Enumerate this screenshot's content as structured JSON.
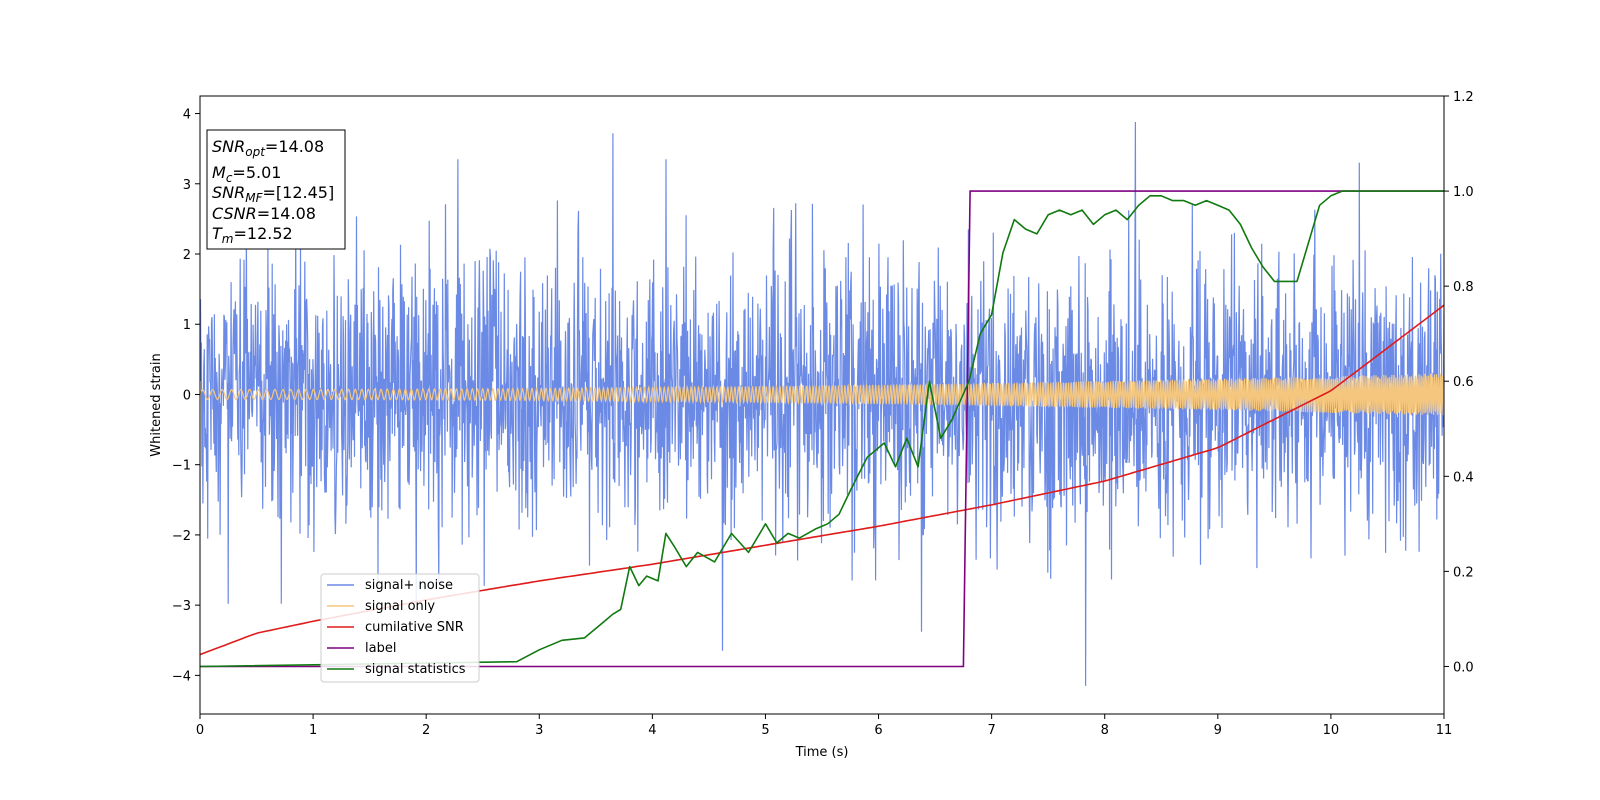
{
  "chart_data": {
    "type": "line",
    "xlabel": "Time (s)",
    "ylabel": "Whitened strain",
    "xlim": [
      0,
      11
    ],
    "ylim_left": [
      -4.55,
      4.25
    ],
    "ylim_right": [
      -0.1,
      1.2
    ],
    "x_ticks": [
      "0",
      "1",
      "2",
      "3",
      "4",
      "5",
      "6",
      "7",
      "8",
      "9",
      "10",
      "11"
    ],
    "y_left_ticks": [
      "4",
      "3",
      "2",
      "1",
      "0",
      "−1",
      "−2",
      "−3",
      "−4"
    ],
    "y_right_ticks": [
      "1.2",
      "1.0",
      "0.8",
      "0.6",
      "0.4",
      "0.2",
      "0.0"
    ],
    "grid": false,
    "legend_position": "lower-left",
    "annotation": {
      "snr_opt_sym": "SNR",
      "snr_opt_sub": "opt",
      "snr_opt_val": "=14.08",
      "mc_sym": "M",
      "mc_sub": "c",
      "mc_val": "=5.01",
      "snr_mf_sym": "SNR",
      "snr_mf_sub": "MF",
      "snr_mf_val": "=[12.45]",
      "csnr_sym": "CSNR",
      "csnr_val": "=14.08",
      "tm_sym": "T",
      "tm_sub": "m",
      "tm_val": "=12.52"
    },
    "series": [
      {
        "name": "signal+ noise",
        "color": "#6b8ae6",
        "axis": "left",
        "description": "noisy strain fluctuating roughly between -3 and 3, peaks near 3.9 at t=8.27 and -4.15 at t=7.83"
      },
      {
        "name": "signal only",
        "color": "#f5c77e",
        "axis": "left",
        "amplitude_start": 0.07,
        "amplitude_end": 0.3
      },
      {
        "name": "cumilative SNR",
        "color": "#e01b1b",
        "axis": "right",
        "x": [
          0,
          0.5,
          1,
          2,
          3,
          4,
          5,
          6,
          7,
          8,
          9,
          10,
          11
        ],
        "y": [
          0.025,
          0.07,
          0.095,
          0.14,
          0.18,
          0.215,
          0.255,
          0.295,
          0.34,
          0.39,
          0.46,
          0.58,
          0.76
        ]
      },
      {
        "name": "label",
        "color": "#800080",
        "axis": "right",
        "x": [
          0,
          6.75,
          6.81,
          11
        ],
        "y": [
          0.0,
          0.0,
          1.0,
          1.0
        ]
      },
      {
        "name": "signal statistics",
        "color": "#107a10",
        "axis": "right",
        "x": [
          0,
          2.8,
          3.0,
          3.2,
          3.4,
          3.55,
          3.65,
          3.72,
          3.8,
          3.88,
          3.95,
          4.05,
          4.12,
          4.2,
          4.3,
          4.4,
          4.55,
          4.7,
          4.85,
          5.0,
          5.1,
          5.2,
          5.3,
          5.45,
          5.55,
          5.65,
          5.75,
          5.9,
          6.05,
          6.15,
          6.25,
          6.35,
          6.45,
          6.55,
          6.65,
          6.8,
          6.9,
          7.0,
          7.1,
          7.2,
          7.3,
          7.4,
          7.5,
          7.6,
          7.7,
          7.8,
          7.9,
          8.0,
          8.1,
          8.2,
          8.3,
          8.4,
          8.5,
          8.6,
          8.7,
          8.8,
          8.9,
          9.0,
          9.1,
          9.2,
          9.3,
          9.4,
          9.5,
          9.6,
          9.7,
          9.8,
          9.9,
          10.0,
          10.1,
          10.2,
          10.3,
          10.4,
          10.5,
          10.6,
          10.7,
          10.8,
          10.9,
          11.0
        ],
        "y": [
          0.0,
          0.01,
          0.035,
          0.055,
          0.06,
          0.09,
          0.11,
          0.12,
          0.21,
          0.17,
          0.19,
          0.18,
          0.28,
          0.25,
          0.21,
          0.24,
          0.22,
          0.28,
          0.24,
          0.3,
          0.26,
          0.28,
          0.27,
          0.29,
          0.3,
          0.32,
          0.37,
          0.44,
          0.47,
          0.42,
          0.48,
          0.42,
          0.6,
          0.48,
          0.52,
          0.6,
          0.7,
          0.74,
          0.87,
          0.94,
          0.92,
          0.91,
          0.95,
          0.96,
          0.95,
          0.96,
          0.93,
          0.95,
          0.96,
          0.94,
          0.97,
          0.99,
          0.99,
          0.98,
          0.98,
          0.97,
          0.98,
          0.97,
          0.96,
          0.93,
          0.88,
          0.84,
          0.81,
          0.81,
          0.81,
          0.89,
          0.97,
          0.99,
          1.0,
          1.0,
          1.0,
          1.0,
          1.0,
          1.0,
          1.0,
          1.0,
          1.0,
          1.0
        ]
      }
    ]
  }
}
